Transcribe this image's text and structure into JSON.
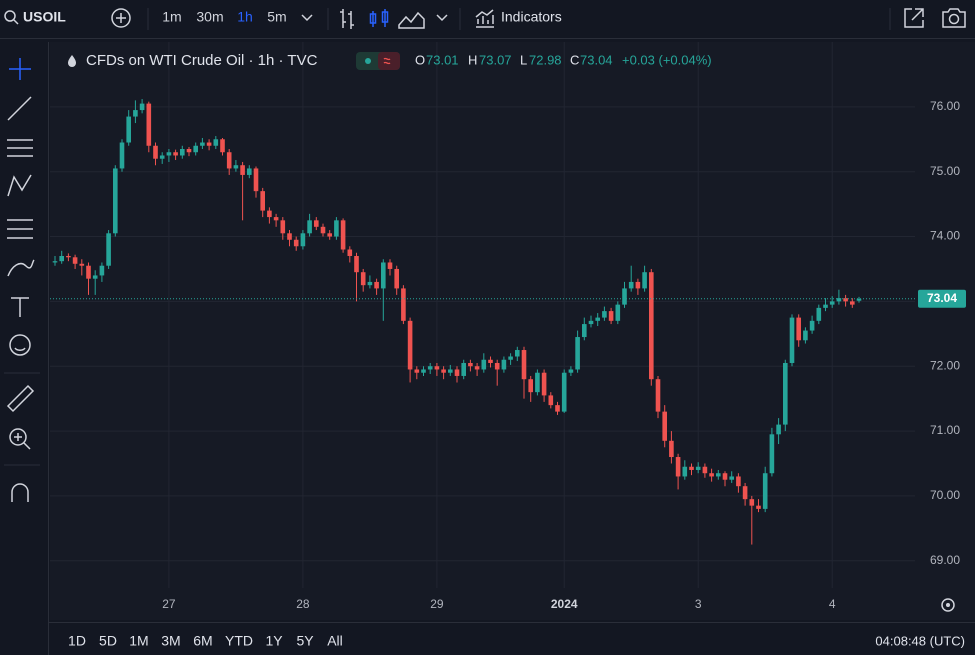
{
  "toolbar": {
    "symbol": "USOIL",
    "intervals": [
      "1m",
      "30m",
      "1h",
      "5m"
    ],
    "indicators": "Indicators"
  },
  "legend": {
    "title": "CFDs on WTI Crude Oil · 1h · TVC",
    "ohlc": [
      {
        "key": "O",
        "value": 73.01
      },
      {
        "key": "H",
        "value": 73.07
      },
      {
        "key": "L",
        "value": 72.98
      },
      {
        "key": "C",
        "value": 73.04
      }
    ],
    "change": "+0.03 (+0.04%)"
  },
  "range_buttons": [
    "1D",
    "5D",
    "1M",
    "3M",
    "6M",
    "YTD",
    "1Y",
    "5Y",
    "All"
  ],
  "clock": "04:08:48 (UTC)",
  "chart_data": {
    "type": "candlestick",
    "up_color": "#26a69a",
    "down_color": "#ef5350",
    "grid": true,
    "ylim": [
      68.58,
      77.0
    ],
    "yticks": [
      {
        "value": 69,
        "label": "69.00"
      },
      {
        "value": 70,
        "label": "70.00"
      },
      {
        "value": 71,
        "label": "71.00"
      },
      {
        "value": 72,
        "label": "72.00"
      },
      {
        "value": 73,
        "label": "73.00"
      },
      {
        "value": 74,
        "label": "74.00"
      },
      {
        "value": 75,
        "label": "75.00"
      },
      {
        "value": 76,
        "label": "76.00"
      }
    ],
    "last_price": {
      "value": 73.04,
      "label": "73.04"
    },
    "categories": [
      null,
      null,
      null,
      null,
      null,
      null,
      null,
      null,
      null,
      null,
      null,
      null,
      null,
      null,
      null,
      null,
      null,
      "27",
      null,
      null,
      null,
      null,
      null,
      null,
      null,
      null,
      null,
      null,
      null,
      null,
      null,
      null,
      null,
      null,
      null,
      null,
      null,
      "28",
      null,
      null,
      null,
      null,
      null,
      null,
      null,
      null,
      null,
      null,
      null,
      null,
      null,
      null,
      null,
      null,
      null,
      null,
      null,
      "29",
      null,
      null,
      null,
      null,
      null,
      null,
      null,
      null,
      null,
      null,
      null,
      null,
      null,
      null,
      null,
      null,
      null,
      null,
      "2024",
      null,
      null,
      null,
      null,
      null,
      null,
      null,
      null,
      null,
      null,
      null,
      null,
      null,
      null,
      null,
      null,
      null,
      null,
      null,
      "3",
      null,
      null,
      null,
      null,
      null,
      null,
      null,
      null,
      null,
      null,
      null,
      null,
      null,
      null,
      null,
      null,
      null,
      null,
      null,
      "4",
      null,
      null,
      null,
      null
    ],
    "candles": [
      [
        73.6,
        73.7,
        73.55,
        73.62
      ],
      [
        73.62,
        73.78,
        73.58,
        73.7
      ],
      [
        73.7,
        73.74,
        73.62,
        73.68
      ],
      [
        73.68,
        73.72,
        73.5,
        73.58
      ],
      [
        73.58,
        73.65,
        73.4,
        73.55
      ],
      [
        73.55,
        73.6,
        73.1,
        73.35
      ],
      [
        73.35,
        73.48,
        73.1,
        73.4
      ],
      [
        73.4,
        73.6,
        73.3,
        73.55
      ],
      [
        73.55,
        74.1,
        73.5,
        74.05
      ],
      [
        74.05,
        75.1,
        74.0,
        75.05
      ],
      [
        75.05,
        75.5,
        75.0,
        75.45
      ],
      [
        75.45,
        75.95,
        75.4,
        75.85
      ],
      [
        75.85,
        76.1,
        75.75,
        75.95
      ],
      [
        75.95,
        76.12,
        75.9,
        76.05
      ],
      [
        76.05,
        76.08,
        75.3,
        75.4
      ],
      [
        75.4,
        75.45,
        75.1,
        75.2
      ],
      [
        75.2,
        75.3,
        75.12,
        75.25
      ],
      [
        75.25,
        75.35,
        75.15,
        75.3
      ],
      [
        75.3,
        75.34,
        75.18,
        75.25
      ],
      [
        75.25,
        75.4,
        75.2,
        75.35
      ],
      [
        75.35,
        75.38,
        75.24,
        75.3
      ],
      [
        75.3,
        75.45,
        75.25,
        75.4
      ],
      [
        75.4,
        75.52,
        75.35,
        75.45
      ],
      [
        75.45,
        75.5,
        75.33,
        75.4
      ],
      [
        75.4,
        75.55,
        75.35,
        75.5
      ],
      [
        75.5,
        75.52,
        75.25,
        75.3
      ],
      [
        75.3,
        75.35,
        74.95,
        75.05
      ],
      [
        75.05,
        75.18,
        75.0,
        75.1
      ],
      [
        75.1,
        75.15,
        74.25,
        74.95
      ],
      [
        74.95,
        75.1,
        74.9,
        75.05
      ],
      [
        75.05,
        75.08,
        74.6,
        74.7
      ],
      [
        74.7,
        74.75,
        74.3,
        74.4
      ],
      [
        74.4,
        74.45,
        74.2,
        74.3
      ],
      [
        74.3,
        74.35,
        74.15,
        74.25
      ],
      [
        74.25,
        74.3,
        73.95,
        74.05
      ],
      [
        74.05,
        74.1,
        73.85,
        73.95
      ],
      [
        73.95,
        74.0,
        73.78,
        73.85
      ],
      [
        73.85,
        74.1,
        73.8,
        74.05
      ],
      [
        74.05,
        74.35,
        74.0,
        74.25
      ],
      [
        74.25,
        74.3,
        74.1,
        74.15
      ],
      [
        74.15,
        74.2,
        74.0,
        74.05
      ],
      [
        74.05,
        74.1,
        73.95,
        74.0
      ],
      [
        74.0,
        74.3,
        73.95,
        74.25
      ],
      [
        74.25,
        74.28,
        73.75,
        73.8
      ],
      [
        73.8,
        73.85,
        73.6,
        73.7
      ],
      [
        73.7,
        73.75,
        73.0,
        73.45
      ],
      [
        73.45,
        73.5,
        73.15,
        73.25
      ],
      [
        73.25,
        73.4,
        73.2,
        73.3
      ],
      [
        73.3,
        73.35,
        73.1,
        73.2
      ],
      [
        73.2,
        73.65,
        72.7,
        73.6
      ],
      [
        73.6,
        73.65,
        73.4,
        73.5
      ],
      [
        73.5,
        73.55,
        73.1,
        73.2
      ],
      [
        73.2,
        73.25,
        72.65,
        72.7
      ],
      [
        72.7,
        72.75,
        71.75,
        71.95
      ],
      [
        71.95,
        72.0,
        71.8,
        71.9
      ],
      [
        71.9,
        72.0,
        71.85,
        71.95
      ],
      [
        71.95,
        72.05,
        71.88,
        72.0
      ],
      [
        72.0,
        72.05,
        71.85,
        71.95
      ],
      [
        71.95,
        72.0,
        71.8,
        71.9
      ],
      [
        71.9,
        72.02,
        71.85,
        71.95
      ],
      [
        71.95,
        72.0,
        71.75,
        71.85
      ],
      [
        71.85,
        72.1,
        71.8,
        72.05
      ],
      [
        72.05,
        72.1,
        71.92,
        72.0
      ],
      [
        72.0,
        72.05,
        71.85,
        71.95
      ],
      [
        71.95,
        72.2,
        71.9,
        72.1
      ],
      [
        72.1,
        72.15,
        71.98,
        72.05
      ],
      [
        72.05,
        72.1,
        71.7,
        71.95
      ],
      [
        71.95,
        72.15,
        71.9,
        72.1
      ],
      [
        72.1,
        72.2,
        72.02,
        72.15
      ],
      [
        72.15,
        72.3,
        72.08,
        72.25
      ],
      [
        72.25,
        72.3,
        71.5,
        71.8
      ],
      [
        71.8,
        71.85,
        71.45,
        71.6
      ],
      [
        71.6,
        71.95,
        71.55,
        71.9
      ],
      [
        71.9,
        71.95,
        71.45,
        71.55
      ],
      [
        71.55,
        71.6,
        71.35,
        71.4
      ],
      [
        71.4,
        71.45,
        71.25,
        71.3
      ],
      [
        71.3,
        71.95,
        71.28,
        71.9
      ],
      [
        71.9,
        72.0,
        71.85,
        71.95
      ],
      [
        71.95,
        72.55,
        71.9,
        72.45
      ],
      [
        72.45,
        72.75,
        72.4,
        72.65
      ],
      [
        72.65,
        72.78,
        72.6,
        72.7
      ],
      [
        72.7,
        72.82,
        72.62,
        72.75
      ],
      [
        72.75,
        72.92,
        72.7,
        72.85
      ],
      [
        72.85,
        72.9,
        72.65,
        72.7
      ],
      [
        72.7,
        73.0,
        72.65,
        72.95
      ],
      [
        72.95,
        73.3,
        72.9,
        73.2
      ],
      [
        73.2,
        73.55,
        73.15,
        73.3
      ],
      [
        73.3,
        73.35,
        73.1,
        73.2
      ],
      [
        73.2,
        73.55,
        73.15,
        73.45
      ],
      [
        73.45,
        73.5,
        71.7,
        71.8
      ],
      [
        71.8,
        71.85,
        71.2,
        71.3
      ],
      [
        71.3,
        71.4,
        70.75,
        70.85
      ],
      [
        70.85,
        71.0,
        70.5,
        70.6
      ],
      [
        70.6,
        70.65,
        70.1,
        70.3
      ],
      [
        70.3,
        70.55,
        70.25,
        70.45
      ],
      [
        70.45,
        70.5,
        70.32,
        70.4
      ],
      [
        70.4,
        70.52,
        70.35,
        70.45
      ],
      [
        70.45,
        70.5,
        70.28,
        70.35
      ],
      [
        70.35,
        70.42,
        70.22,
        70.3
      ],
      [
        70.3,
        70.4,
        70.25,
        70.35
      ],
      [
        70.35,
        70.38,
        70.15,
        70.25
      ],
      [
        70.25,
        70.38,
        70.2,
        70.3
      ],
      [
        70.3,
        70.35,
        70.05,
        70.15
      ],
      [
        70.15,
        70.2,
        69.85,
        69.95
      ],
      [
        69.95,
        70.0,
        69.25,
        69.85
      ],
      [
        69.85,
        69.95,
        69.75,
        69.8
      ],
      [
        69.8,
        70.45,
        69.75,
        70.35
      ],
      [
        70.35,
        71.05,
        70.3,
        70.95
      ],
      [
        70.95,
        71.2,
        70.8,
        71.1
      ],
      [
        71.1,
        72.1,
        71.0,
        72.05
      ],
      [
        72.05,
        72.8,
        72.0,
        72.75
      ],
      [
        72.75,
        72.8,
        72.3,
        72.4
      ],
      [
        72.4,
        72.6,
        72.35,
        72.55
      ],
      [
        72.55,
        72.78,
        72.5,
        72.7
      ],
      [
        72.7,
        72.95,
        72.65,
        72.9
      ],
      [
        72.9,
        73.05,
        72.85,
        72.95
      ],
      [
        72.95,
        73.08,
        72.9,
        73.0
      ],
      [
        73.0,
        73.18,
        72.95,
        73.05
      ],
      [
        73.05,
        73.1,
        72.92,
        73.0
      ],
      [
        73.0,
        73.05,
        72.9,
        72.95
      ],
      [
        73.01,
        73.07,
        72.98,
        73.04
      ]
    ]
  }
}
